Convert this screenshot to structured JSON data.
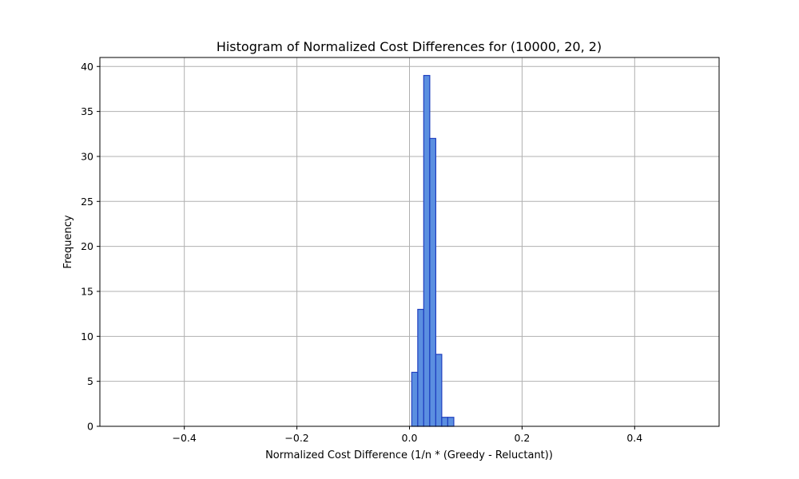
{
  "chart_data": {
    "type": "bar",
    "title": "Histogram of Normalized Cost Differences for (10000, 20, 2)",
    "xlabel": "Normalized Cost Difference (1/n * (Greedy - Reluctant))",
    "ylabel": "Frequency",
    "xlim": [
      -0.55,
      0.55
    ],
    "ylim": [
      0,
      41
    ],
    "xticks": [
      -0.4,
      -0.2,
      0.0,
      0.2,
      0.4
    ],
    "xtick_labels": [
      "−0.4",
      "−0.2",
      "0.0",
      "0.2",
      "0.4"
    ],
    "yticks": [
      0,
      5,
      10,
      15,
      20,
      25,
      30,
      35,
      40
    ],
    "ytick_labels": [
      "0",
      "5",
      "10",
      "15",
      "20",
      "25",
      "30",
      "35",
      "40"
    ],
    "grid": true,
    "bar_fill": "#5b8fe0",
    "bar_edge": "#1f3fbf",
    "bins": [
      {
        "x0": 0.004,
        "x1": 0.0147,
        "count": 6
      },
      {
        "x0": 0.0147,
        "x1": 0.0253,
        "count": 13
      },
      {
        "x0": 0.0253,
        "x1": 0.036,
        "count": 39
      },
      {
        "x0": 0.036,
        "x1": 0.0467,
        "count": 32
      },
      {
        "x0": 0.0467,
        "x1": 0.0573,
        "count": 8
      },
      {
        "x0": 0.0573,
        "x1": 0.068,
        "count": 1
      },
      {
        "x0": 0.068,
        "x1": 0.0787,
        "count": 1
      }
    ]
  }
}
